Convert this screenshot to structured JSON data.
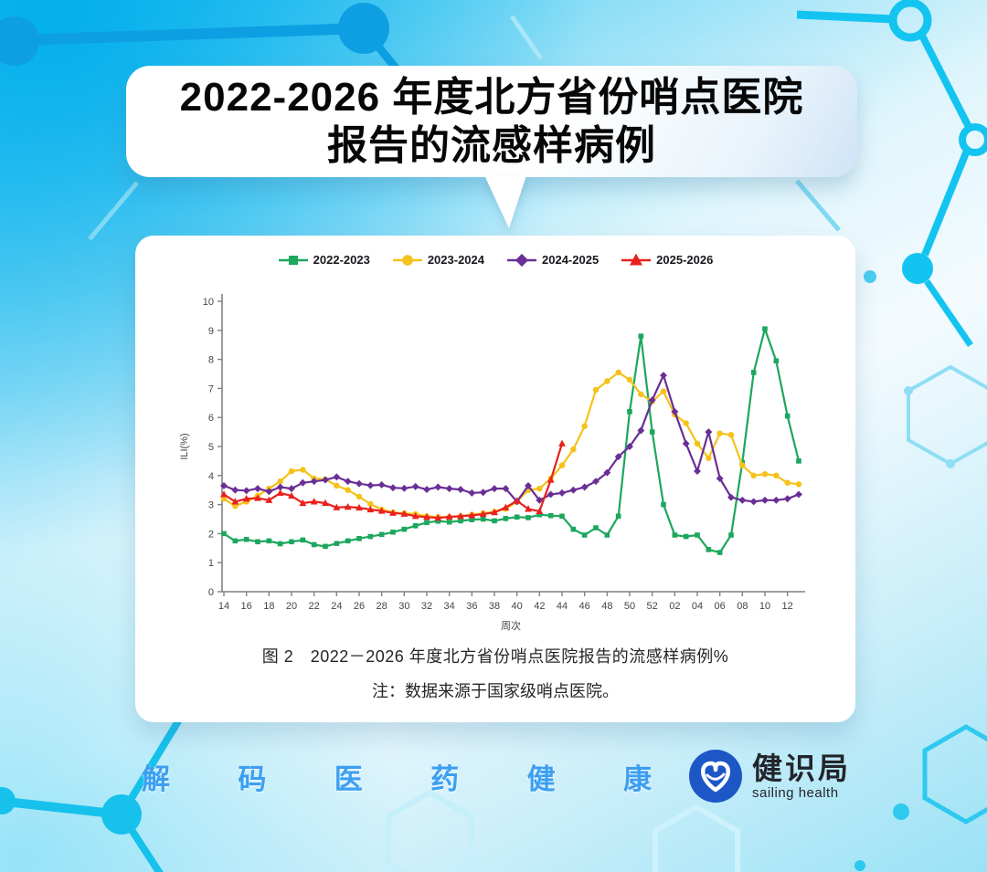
{
  "header": {
    "title_line1": "2022-2026 年度北方省份哨点医院",
    "title_line2": "报告的流感样病例"
  },
  "chart_card": {
    "caption": "图 2　2022－2026 年度北方省份哨点医院报告的流感样病例%",
    "note": "注：数据来源于国家级哨点医院。"
  },
  "chart_data": {
    "type": "line",
    "title": "",
    "xlabel": "周次",
    "ylabel": "ILI(%)",
    "ylim": [
      0,
      10
    ],
    "y_ticks": [
      0,
      1,
      2,
      3,
      4,
      5,
      6,
      7,
      8,
      9,
      10
    ],
    "grid": false,
    "legend_position": "top-center",
    "categories": [
      "14",
      "15",
      "16",
      "17",
      "18",
      "19",
      "20",
      "21",
      "22",
      "23",
      "24",
      "25",
      "26",
      "27",
      "28",
      "29",
      "30",
      "31",
      "32",
      "33",
      "34",
      "35",
      "36",
      "37",
      "38",
      "39",
      "40",
      "41",
      "42",
      "43",
      "44",
      "45",
      "46",
      "47",
      "48",
      "49",
      "50",
      "51",
      "52",
      "01",
      "02",
      "03",
      "04",
      "05",
      "06",
      "07",
      "08",
      "09",
      "10",
      "11",
      "12",
      "13"
    ],
    "x_tick_labels": [
      "14",
      "16",
      "18",
      "20",
      "22",
      "24",
      "26",
      "28",
      "30",
      "32",
      "34",
      "36",
      "38",
      "40",
      "42",
      "44",
      "46",
      "48",
      "50",
      "52",
      "02",
      "04",
      "06",
      "08",
      "10",
      "12"
    ],
    "series": [
      {
        "name": "2022-2023",
        "color": "#1ca75e",
        "marker": "square",
        "values": [
          2.0,
          1.75,
          1.8,
          1.72,
          1.75,
          1.65,
          1.72,
          1.78,
          1.62,
          1.56,
          1.66,
          1.75,
          1.83,
          1.9,
          1.97,
          2.05,
          2.15,
          2.27,
          2.38,
          2.43,
          2.4,
          2.44,
          2.48,
          2.5,
          2.44,
          2.52,
          2.57,
          2.55,
          2.65,
          2.62,
          2.6,
          2.15,
          1.95,
          2.2,
          1.95,
          2.6,
          6.2,
          8.8,
          5.5,
          3.0,
          1.95,
          1.9,
          1.95,
          1.45,
          1.35,
          1.95,
          4.45,
          7.55,
          9.05,
          7.95,
          6.05,
          4.5
        ]
      },
      {
        "name": "2023-2024",
        "color": "#f5c21b",
        "marker": "circle",
        "values": [
          3.2,
          2.95,
          3.1,
          3.3,
          3.55,
          3.8,
          4.15,
          4.2,
          3.9,
          3.87,
          3.65,
          3.5,
          3.27,
          3.02,
          2.83,
          2.73,
          2.7,
          2.67,
          2.6,
          2.57,
          2.57,
          2.6,
          2.65,
          2.7,
          2.75,
          2.85,
          3.1,
          3.5,
          3.55,
          3.9,
          4.35,
          4.9,
          5.7,
          6.95,
          7.25,
          7.55,
          7.3,
          6.8,
          6.55,
          6.9,
          6.1,
          5.8,
          5.1,
          4.6,
          5.45,
          5.4,
          4.35,
          4.0,
          4.05,
          4.0,
          3.75,
          3.7
        ]
      },
      {
        "name": "2024-2025",
        "color": "#6a2e96",
        "marker": "diamond",
        "values": [
          3.65,
          3.5,
          3.48,
          3.55,
          3.45,
          3.6,
          3.55,
          3.75,
          3.8,
          3.85,
          3.95,
          3.8,
          3.72,
          3.66,
          3.68,
          3.58,
          3.56,
          3.62,
          3.52,
          3.6,
          3.55,
          3.52,
          3.4,
          3.42,
          3.55,
          3.55,
          3.1,
          3.65,
          3.15,
          3.35,
          3.4,
          3.5,
          3.6,
          3.8,
          4.1,
          4.65,
          5.0,
          5.55,
          6.6,
          7.45,
          6.2,
          5.1,
          4.15,
          5.5,
          3.9,
          3.25,
          3.15,
          3.1,
          3.15,
          3.15,
          3.2,
          3.35
        ]
      },
      {
        "name": "2025-2026",
        "color": "#e8211c",
        "marker": "triangle",
        "values": [
          3.35,
          3.1,
          3.2,
          3.22,
          3.15,
          3.4,
          3.3,
          3.05,
          3.1,
          3.05,
          2.9,
          2.92,
          2.89,
          2.83,
          2.78,
          2.71,
          2.68,
          2.6,
          2.57,
          2.54,
          2.58,
          2.6,
          2.63,
          2.67,
          2.73,
          2.9,
          3.13,
          2.85,
          2.77,
          3.85,
          5.1
        ]
      }
    ]
  },
  "footer": {
    "slogan": [
      "解",
      "码",
      "医",
      "药",
      "健",
      "康"
    ],
    "logo_text": "健识局",
    "logo_subtext": "sailing health",
    "colors": {
      "slogan_blue": "#3d9ff0",
      "logo_blue": "#1d57c6",
      "logo_text_color": "#23252c"
    }
  }
}
